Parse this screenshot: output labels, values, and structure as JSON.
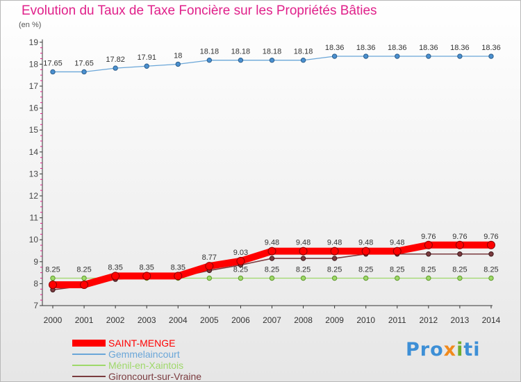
{
  "header": {
    "title": "Evolution du Taux de Taxe Foncière sur les Propriétés Bâties",
    "unit": "(en %)"
  },
  "logo": {
    "text": "Proxiti"
  },
  "colors": {
    "title": "#e0208a",
    "axis_labels": "#444444",
    "saint_menge": "#ff0000",
    "gemmelaincourt": "#6aa6d8",
    "menil": "#9ed86a",
    "gironcourt": "#7a3b3f"
  },
  "chart_data": {
    "type": "line",
    "title": "Evolution du Taux de Taxe Foncière sur les Propriétés Bâties",
    "ylabel": "(en %)",
    "xlabel": "",
    "x": [
      "2000",
      "2001",
      "2002",
      "2003",
      "2004",
      "2005",
      "2006",
      "2007",
      "2008",
      "2009",
      "2010",
      "2011",
      "2012",
      "2013",
      "2014"
    ],
    "ylim": [
      7,
      19
    ],
    "yticks": [
      7,
      8,
      9,
      10,
      11,
      12,
      13,
      14,
      15,
      16,
      17,
      18,
      19
    ],
    "grid": false,
    "legend_position": "bottom-left",
    "series": [
      {
        "name": "SAINT-MENGE",
        "color": "#ff0000",
        "values": [
          7.95,
          7.95,
          8.35,
          8.35,
          8.35,
          8.8,
          9.03,
          9.48,
          9.48,
          9.48,
          9.48,
          9.48,
          9.76,
          9.76,
          9.76
        ],
        "labels": [
          "",
          "",
          "8.35",
          "8.35",
          "8.35",
          "8.77",
          "9.03",
          "9.48",
          "9.48",
          "9.48",
          "9.48",
          "9.48",
          "9.76",
          "9.76",
          "9.76"
        ]
      },
      {
        "name": "Gemmelaincourt",
        "color": "#6aa6d8",
        "values": [
          17.65,
          17.65,
          17.82,
          17.91,
          18,
          18.18,
          18.18,
          18.18,
          18.18,
          18.36,
          18.36,
          18.36,
          18.36,
          18.36,
          18.36
        ],
        "labels": [
          "17.65",
          "17.65",
          "17.82",
          "17.91",
          "18",
          "18.18",
          "18.18",
          "18.18",
          "18.18",
          "18.36",
          "18.36",
          "18.36",
          "18.36",
          "18.36",
          "18.36"
        ]
      },
      {
        "name": "Ménil-en-Xaintois",
        "color": "#9ed86a",
        "values": [
          8.25,
          8.25,
          8.25,
          8.25,
          8.25,
          8.25,
          8.25,
          8.25,
          8.25,
          8.25,
          8.25,
          8.25,
          8.25,
          8.25,
          8.25
        ],
        "labels": [
          "8.25",
          "8.25",
          "",
          "",
          "",
          "",
          "8.25",
          "8.25",
          "8.25",
          "8.25",
          "8.25",
          "8.25",
          "8.25",
          "8.25",
          "8.25"
        ]
      },
      {
        "name": "Gironcourt-sur-Vraine",
        "color": "#7a3b3f",
        "values": [
          7.72,
          7.9,
          8.2,
          8.3,
          8.3,
          8.6,
          8.85,
          9.15,
          9.15,
          9.15,
          9.35,
          9.35,
          9.35,
          9.35,
          9.35
        ],
        "labels": [
          "",
          "",
          "",
          "",
          "",
          "",
          "",
          "",
          "",
          "",
          "",
          "",
          "",
          "",
          ""
        ]
      }
    ]
  }
}
